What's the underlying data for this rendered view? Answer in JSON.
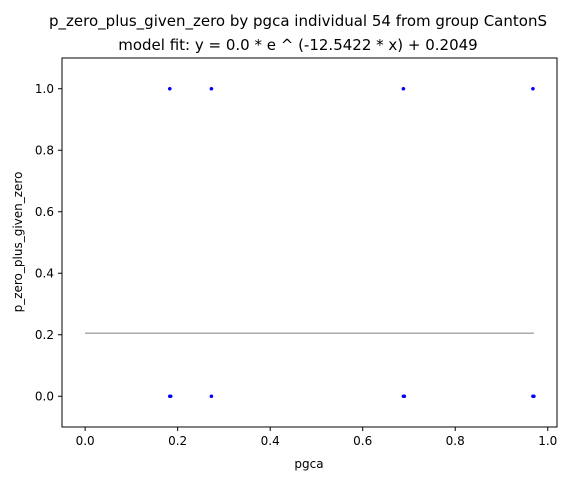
{
  "chart_data": {
    "type": "scatter",
    "title": "p_zero_plus_given_zero by pgca individual 54 from group CantonS",
    "subtitle": "model fit: y = 0.0 * e ^ (-12.5422 * x) + 0.2049",
    "xlabel": "pgca",
    "ylabel": "p_zero_plus_given_zero",
    "xlim": [
      -0.05,
      1.02
    ],
    "ylim": [
      -0.1,
      1.1
    ],
    "xticks": [
      "0.0",
      "0.2",
      "0.4",
      "0.6",
      "0.8",
      "1.0"
    ],
    "yticks": [
      "0.0",
      "0.2",
      "0.4",
      "0.6",
      "0.8",
      "1.0"
    ],
    "grid": false,
    "colors": {
      "points": "#0000ff",
      "fit": "#aaaaaa"
    },
    "points": [
      {
        "x": 0.183,
        "y": 1.0
      },
      {
        "x": 0.273,
        "y": 1.0
      },
      {
        "x": 0.688,
        "y": 1.0
      },
      {
        "x": 0.968,
        "y": 1.0
      },
      {
        "x": 0.183,
        "y": 0.0
      },
      {
        "x": 0.185,
        "y": 0.0
      },
      {
        "x": 0.273,
        "y": 0.0
      },
      {
        "x": 0.688,
        "y": 0.0
      },
      {
        "x": 0.69,
        "y": 0.0
      },
      {
        "x": 0.968,
        "y": 0.0
      },
      {
        "x": 0.97,
        "y": 0.0
      }
    ],
    "fit": {
      "a": 0.0,
      "b": -12.5422,
      "c": 0.2049,
      "x_range": [
        0.0,
        0.97
      ]
    }
  }
}
